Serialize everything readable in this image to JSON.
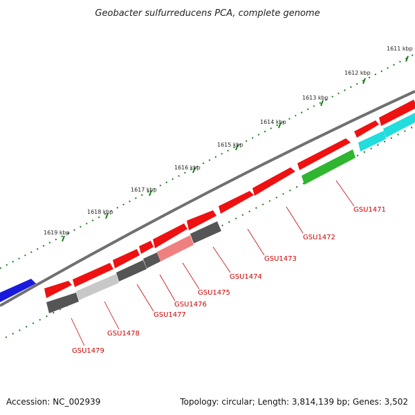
{
  "title": "Geobacter sulfurreducens PCA, complete genome",
  "footer": {
    "accession": "Accession: NC_002939",
    "summary": "Topology: circular; Length: 3,814,139 bp; Genes: 3,502"
  },
  "ticks": [
    "1611 kbp",
    "1612 kbp",
    "1613 kbp",
    "1614 kbp",
    "1615 kbp",
    "1616 kbp",
    "1617 kbp",
    "1618 kbp",
    "1619 kbp"
  ],
  "colors": {
    "forward": "#ee1111",
    "dark": "#555555",
    "light": "#c8c8c8",
    "pink": "#f08080",
    "green": "#2fb52f",
    "cyan": "#22dddd",
    "blue": "#1a1adc",
    "backbone": "#707070",
    "tick": "#1a7a1a",
    "label": "#cc0000"
  },
  "genes": [
    {
      "name": "GSU1471"
    },
    {
      "name": "GSU1472"
    },
    {
      "name": "GSU1473"
    },
    {
      "name": "GSU1474"
    },
    {
      "name": "GSU1475"
    },
    {
      "name": "GSU1476"
    },
    {
      "name": "GSU1477"
    },
    {
      "name": "GSU1478"
    },
    {
      "name": "GSU1479"
    }
  ]
}
